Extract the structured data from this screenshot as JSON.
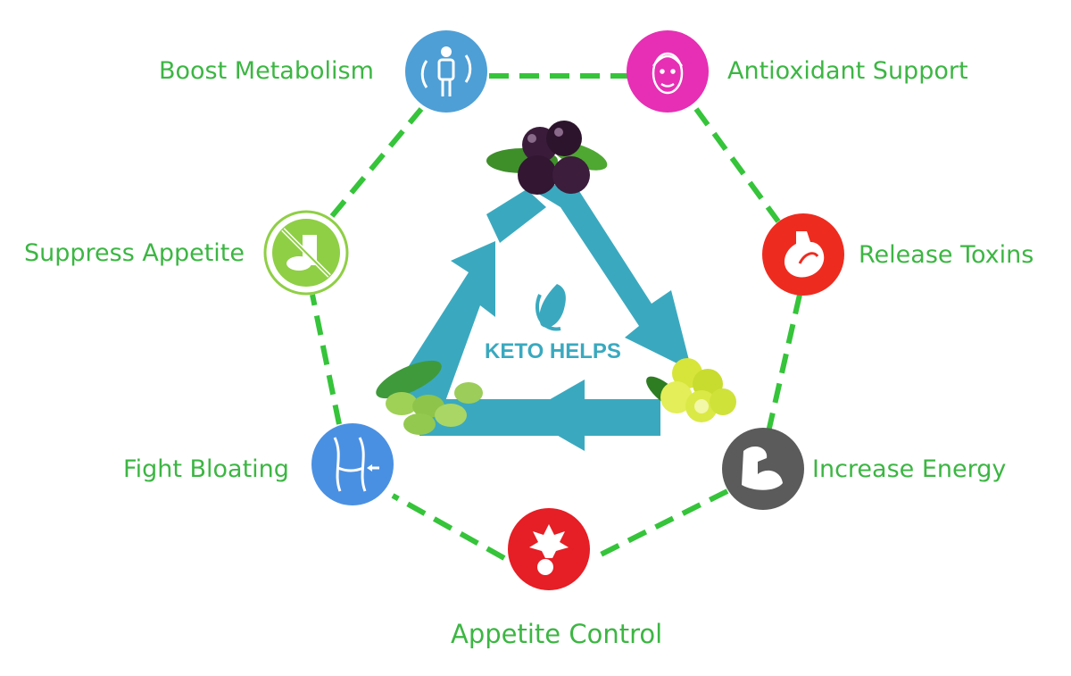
{
  "center": {
    "label": "KETO HELPS"
  },
  "colors": {
    "dash": "#35c43a",
    "label": "#3cb643",
    "arrows": "#3aa9bf",
    "metabolism": "#4e9fd6",
    "antioxidant": "#e62fb4",
    "toxins": "#ee2b1f",
    "energy": "#5b5b5b",
    "appetite_control": "#e61e25",
    "bloating": "#4a90e2",
    "suppress": "#8fcf45"
  },
  "benefits": [
    {
      "id": "metabolism",
      "label": "Boost Metabolism",
      "icon": "person-cycle-icon"
    },
    {
      "id": "antioxidant",
      "label": "Antioxidant Support",
      "icon": "face-icon"
    },
    {
      "id": "toxins",
      "label": "Release Toxins",
      "icon": "stomach-icon"
    },
    {
      "id": "energy",
      "label": "Increase Energy",
      "icon": "flexed-arm-icon"
    },
    {
      "id": "appetite_control",
      "label": "Appetite Control",
      "icon": "plant-root-icon"
    },
    {
      "id": "bloating",
      "label": "Fight Bloating",
      "icon": "waist-icon"
    },
    {
      "id": "suppress",
      "label": "Suppress Appetite",
      "icon": "no-junk-food-icon"
    }
  ]
}
